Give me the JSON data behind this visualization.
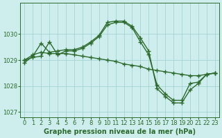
{
  "line1_x": [
    0,
    1,
    2,
    3,
    4,
    5,
    6,
    7,
    8,
    9,
    10,
    11,
    12,
    13,
    14,
    15,
    16,
    17,
    18,
    19,
    20,
    21,
    22,
    23
  ],
  "line1_y": [
    1029.0,
    1029.2,
    1029.3,
    1029.25,
    1029.25,
    1029.25,
    1029.2,
    1029.15,
    1029.1,
    1029.05,
    1029.0,
    1028.95,
    1028.85,
    1028.8,
    1028.75,
    1028.65,
    1028.6,
    1028.55,
    1028.5,
    1028.45,
    1028.4,
    1028.4,
    1028.45,
    1028.5
  ],
  "line2_x": [
    0,
    1,
    2,
    3,
    4,
    5,
    6,
    7,
    8,
    9,
    10,
    11,
    12,
    13,
    14,
    15,
    16,
    17,
    18,
    19,
    20,
    21,
    22,
    23
  ],
  "line2_y": [
    1028.9,
    1029.15,
    1029.65,
    1029.3,
    1029.35,
    1029.4,
    1029.4,
    1029.5,
    1029.7,
    1029.95,
    1030.45,
    1030.5,
    1030.5,
    1030.3,
    1029.85,
    1029.35,
    1027.9,
    1027.6,
    1027.35,
    1027.35,
    1027.85,
    1028.1,
    1028.45,
    1028.5
  ],
  "line3_x": [
    0,
    1,
    2,
    3,
    4,
    5,
    6,
    7,
    8,
    9,
    10,
    11,
    12,
    13,
    14,
    15,
    16,
    17,
    18,
    19,
    20,
    21,
    22,
    23
  ],
  "line3_y": [
    1029.0,
    1029.1,
    1029.15,
    1029.7,
    1029.2,
    1029.35,
    1029.35,
    1029.45,
    1029.65,
    1029.9,
    1030.35,
    1030.45,
    1030.45,
    1030.25,
    1029.7,
    1029.2,
    1028.05,
    1027.7,
    1027.45,
    1027.45,
    1028.1,
    1028.15,
    1028.45,
    1028.5
  ],
  "line_color": "#2d6a2d",
  "bg_color": "#ceeeed",
  "grid_color": "#9ecece",
  "xlabel": "Graphe pression niveau de la mer (hPa)",
  "ylim": [
    1026.8,
    1031.2
  ],
  "xlim": [
    -0.5,
    23.5
  ],
  "yticks": [
    1027,
    1028,
    1029,
    1030
  ],
  "xticks": [
    0,
    1,
    2,
    3,
    4,
    5,
    6,
    7,
    8,
    9,
    10,
    11,
    12,
    13,
    14,
    15,
    16,
    17,
    18,
    19,
    20,
    21,
    22,
    23
  ],
  "marker": "+",
  "markersize": 4,
  "linewidth": 1.0,
  "xlabel_fontsize": 7.0,
  "tick_fontsize": 6.0
}
